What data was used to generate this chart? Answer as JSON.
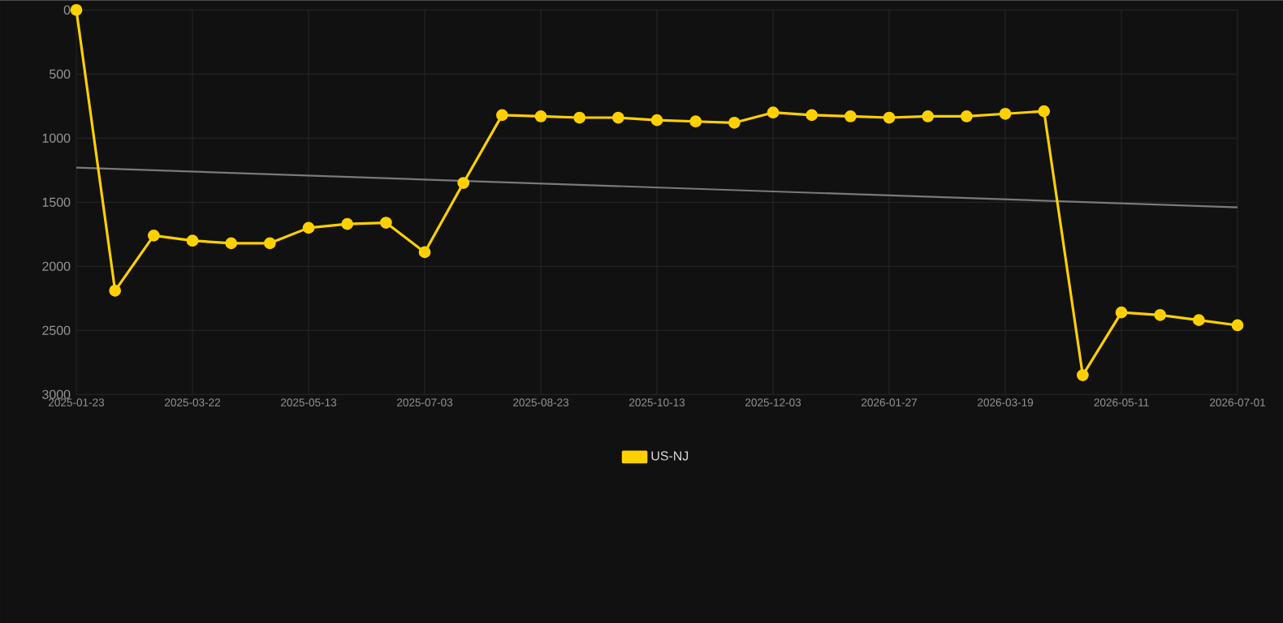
{
  "chart_data": {
    "type": "line",
    "categories": [
      "2025-01-23",
      null,
      null,
      "2025-03-22",
      null,
      null,
      "2025-05-13",
      null,
      null,
      "2025-07-03",
      null,
      null,
      "2025-08-23",
      null,
      null,
      "2025-10-13",
      null,
      null,
      "2025-12-03",
      null,
      null,
      "2026-01-27",
      null,
      null,
      "2026-03-19",
      null,
      null,
      "2026-05-11",
      null,
      null,
      "2026-07-01"
    ],
    "series": [
      {
        "name": "US-NJ",
        "color": "#ffd000",
        "values": [
          0,
          2190,
          1760,
          1800,
          1820,
          1820,
          1700,
          1670,
          1660,
          1890,
          1350,
          820,
          830,
          840,
          840,
          860,
          870,
          880,
          800,
          820,
          830,
          840,
          830,
          830,
          810,
          790,
          2850,
          2360,
          2380,
          2420,
          2460
        ]
      },
      {
        "type": "line",
        "marker": "none",
        "color": "#7a7a7a",
        "values": [
          1230,
          null,
          null,
          null,
          null,
          null,
          null,
          null,
          null,
          null,
          null,
          null,
          null,
          null,
          null,
          null,
          null,
          null,
          null,
          null,
          null,
          null,
          null,
          null,
          null,
          null,
          null,
          null,
          null,
          null,
          1540
        ]
      }
    ],
    "ylim": [
      3000,
      0
    ],
    "yticks": [
      0,
      500,
      1000,
      1500,
      2000,
      2500,
      3000
    ],
    "grid": true,
    "legend": "bottom",
    "marker": "circle",
    "line_style": "solid"
  }
}
